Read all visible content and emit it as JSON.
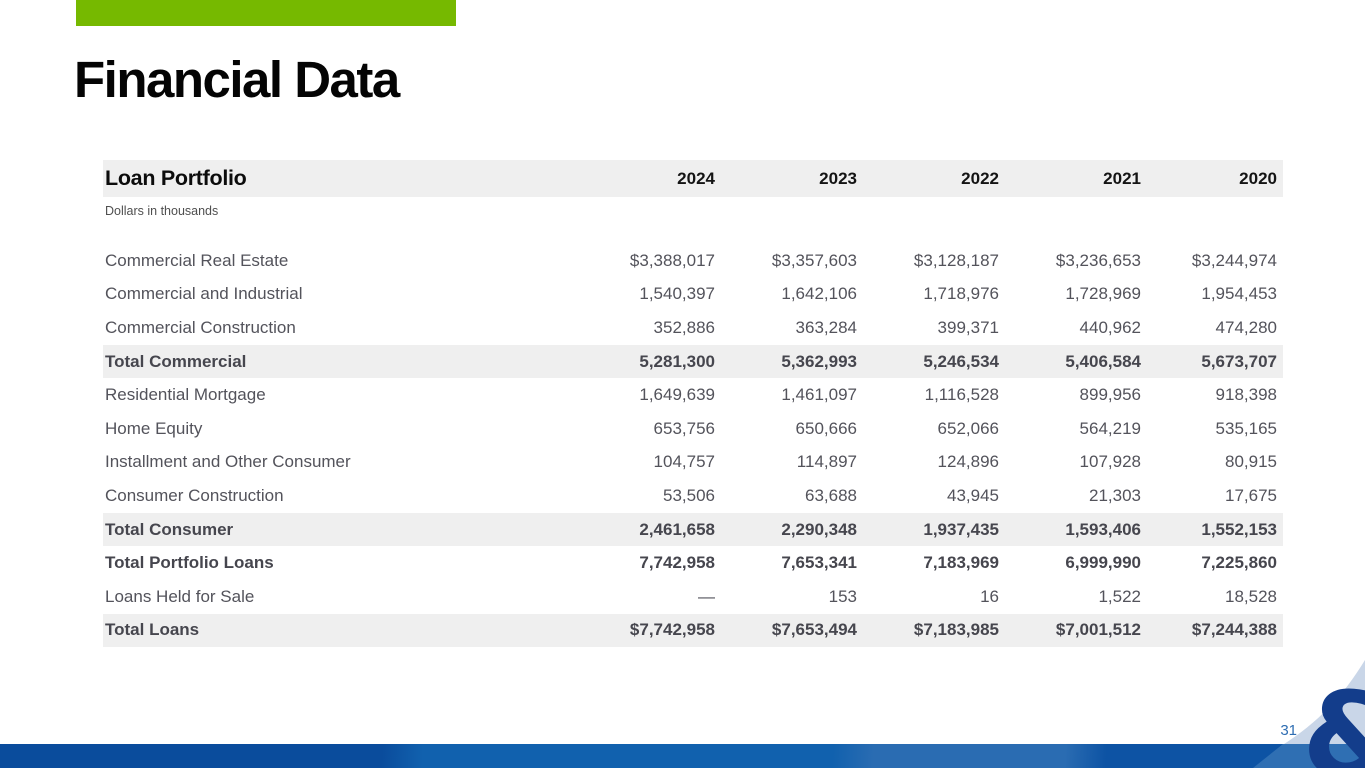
{
  "slide": {
    "title": "Financial Data",
    "page_number": "31"
  },
  "colors": {
    "accent_green": "#76b900",
    "band_gray": "#efefef",
    "bar_blue": "#0d5aa9",
    "logo_navy": "#133d8b",
    "page_number_blue": "#2e6db2"
  },
  "logo": {
    "glyph": "&"
  },
  "table": {
    "title": "Loan Portfolio",
    "subtitle": "Dollars in thousands",
    "years": [
      "2024",
      "2023",
      "2022",
      "2021",
      "2020"
    ],
    "rows": [
      {
        "label": "Commercial Real Estate",
        "style": "plain",
        "values": [
          "$3,388,017",
          "$3,357,603",
          "$3,128,187",
          "$3,236,653",
          "$3,244,974"
        ]
      },
      {
        "label": "Commercial and Industrial",
        "style": "plain",
        "values": [
          "1,540,397",
          "1,642,106",
          "1,718,976",
          "1,728,969",
          "1,954,453"
        ]
      },
      {
        "label": "Commercial Construction",
        "style": "plain",
        "values": [
          "352,886",
          "363,284",
          "399,371",
          "440,962",
          "474,280"
        ]
      },
      {
        "label": "Total Commercial",
        "style": "total",
        "values": [
          "5,281,300",
          "5,362,993",
          "5,246,534",
          "5,406,584",
          "5,673,707"
        ]
      },
      {
        "label": "Residential Mortgage",
        "style": "plain",
        "values": [
          "1,649,639",
          "1,461,097",
          "1,116,528",
          "899,956",
          "918,398"
        ]
      },
      {
        "label": "Home Equity",
        "style": "plain",
        "values": [
          "653,756",
          "650,666",
          "652,066",
          "564,219",
          "535,165"
        ]
      },
      {
        "label": "Installment and Other Consumer",
        "style": "plain",
        "values": [
          "104,757",
          "114,897",
          "124,896",
          "107,928",
          "80,915"
        ]
      },
      {
        "label": "Consumer Construction",
        "style": "plain",
        "values": [
          "53,506",
          "63,688",
          "43,945",
          "21,303",
          "17,675"
        ]
      },
      {
        "label": "Total Consumer",
        "style": "total",
        "values": [
          "2,461,658",
          "2,290,348",
          "1,937,435",
          "1,593,406",
          "1,552,153"
        ]
      },
      {
        "label": "Total Portfolio Loans",
        "style": "bold",
        "values": [
          "7,742,958",
          "7,653,341",
          "7,183,969",
          "6,999,990",
          "7,225,860"
        ]
      },
      {
        "label": "Loans Held for Sale",
        "style": "plain",
        "values": [
          "—",
          "153",
          "16",
          "1,522",
          "18,528"
        ]
      },
      {
        "label": "Total Loans",
        "style": "total",
        "values": [
          "$7,742,958",
          "$7,653,494",
          "$7,183,985",
          "$7,001,512",
          "$7,244,388"
        ]
      }
    ]
  }
}
